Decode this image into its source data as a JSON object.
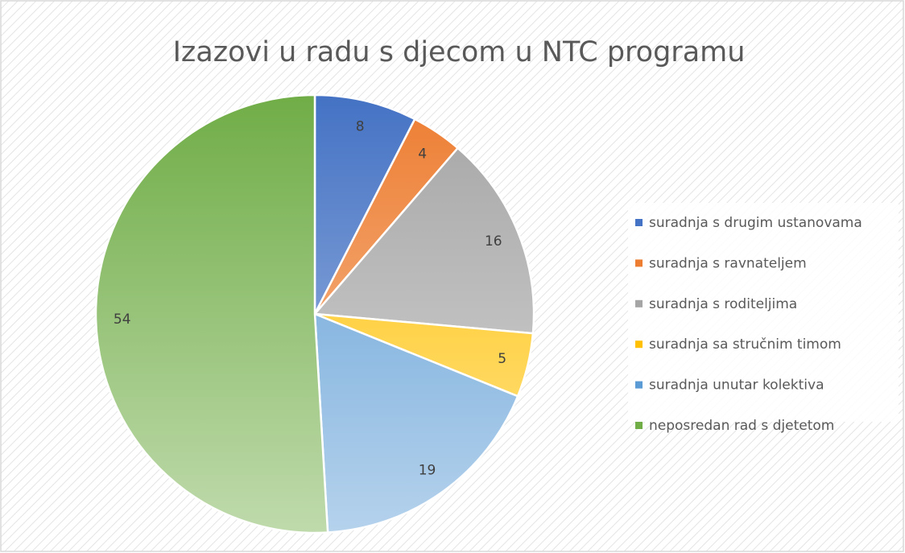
{
  "chart_data": {
    "type": "pie",
    "title": "Izazovi u radu s djecom u NTC programu",
    "categories": [
      "suradnja s drugim ustanovama",
      "suradnja s ravnateljem",
      "suradnja s roditeljima",
      "suradnja sa stručnim timom",
      "suradnja unutar kolektiva",
      "neposredan rad s djetetom"
    ],
    "values": [
      8,
      4,
      16,
      5,
      19,
      54
    ],
    "colors": [
      "#4472c4",
      "#ed7d31",
      "#a5a5a5",
      "#ffc000",
      "#5b9bd5",
      "#70ad47"
    ],
    "legend": "right"
  }
}
